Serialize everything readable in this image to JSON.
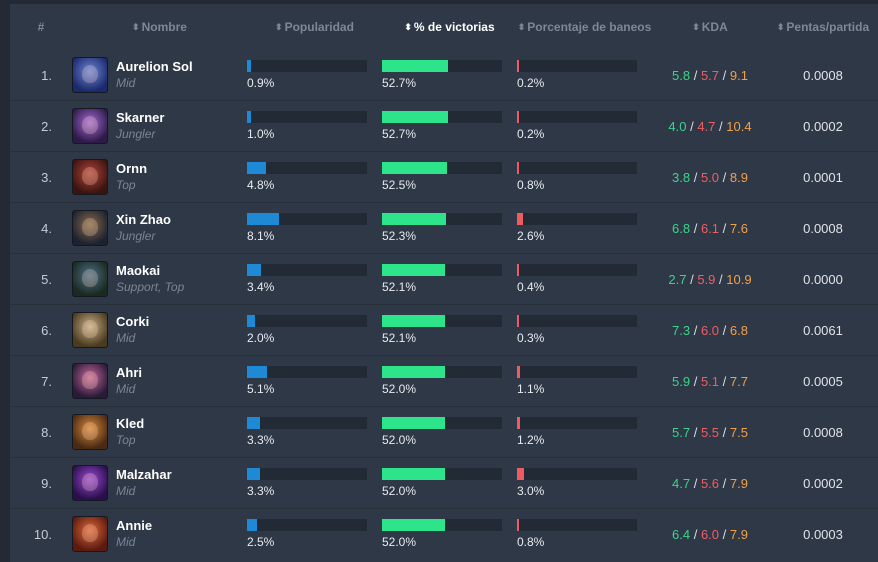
{
  "header": {
    "rank": "#",
    "name": "Nombre",
    "popularity": "Popularidad",
    "winrate": "% de victorias",
    "banrate": "Porcentaje de baneos",
    "kda": "KDA",
    "pentas": "Pentas/partida"
  },
  "colors": {
    "popularity_bar": "#1e8ad6",
    "winrate_bar": "#2de48b",
    "banrate_bar": "#ee5c61",
    "kda_kills": "#3ad58a",
    "kda_deaths": "#ef5e64",
    "kda_assists": "#f2a04a"
  },
  "rows": [
    {
      "rank": "1.",
      "name": "Aurelion Sol",
      "role": "Mid",
      "icon": "aurelion-sol-portrait",
      "popularity": "0.9%",
      "winrate": "52.7%",
      "banrate": "0.2%",
      "kda_k": "5.8",
      "kda_d": "5.7",
      "kda_a": "9.1",
      "pentas": "0.0008"
    },
    {
      "rank": "2.",
      "name": "Skarner",
      "role": "Jungler",
      "icon": "skarner-portrait",
      "popularity": "1.0%",
      "winrate": "52.7%",
      "banrate": "0.2%",
      "kda_k": "4.0",
      "kda_d": "4.7",
      "kda_a": "10.4",
      "pentas": "0.0002"
    },
    {
      "rank": "3.",
      "name": "Ornn",
      "role": "Top",
      "icon": "ornn-portrait",
      "popularity": "4.8%",
      "winrate": "52.5%",
      "banrate": "0.8%",
      "kda_k": "3.8",
      "kda_d": "5.0",
      "kda_a": "8.9",
      "pentas": "0.0001"
    },
    {
      "rank": "4.",
      "name": "Xin Zhao",
      "role": "Jungler",
      "icon": "xin-zhao-portrait",
      "popularity": "8.1%",
      "winrate": "52.3%",
      "banrate": "2.6%",
      "kda_k": "6.8",
      "kda_d": "6.1",
      "kda_a": "7.6",
      "pentas": "0.0008"
    },
    {
      "rank": "5.",
      "name": "Maokai",
      "role": "Support, Top",
      "icon": "maokai-portrait",
      "popularity": "3.4%",
      "winrate": "52.1%",
      "banrate": "0.4%",
      "kda_k": "2.7",
      "kda_d": "5.9",
      "kda_a": "10.9",
      "pentas": "0.0000"
    },
    {
      "rank": "6.",
      "name": "Corki",
      "role": "Mid",
      "icon": "corki-portrait",
      "popularity": "2.0%",
      "winrate": "52.1%",
      "banrate": "0.3%",
      "kda_k": "7.3",
      "kda_d": "6.0",
      "kda_a": "6.8",
      "pentas": "0.0061"
    },
    {
      "rank": "7.",
      "name": "Ahri",
      "role": "Mid",
      "icon": "ahri-portrait",
      "popularity": "5.1%",
      "winrate": "52.0%",
      "banrate": "1.1%",
      "kda_k": "5.9",
      "kda_d": "5.1",
      "kda_a": "7.7",
      "pentas": "0.0005"
    },
    {
      "rank": "8.",
      "name": "Kled",
      "role": "Top",
      "icon": "kled-portrait",
      "popularity": "3.3%",
      "winrate": "52.0%",
      "banrate": "1.2%",
      "kda_k": "5.7",
      "kda_d": "5.5",
      "kda_a": "7.5",
      "pentas": "0.0008"
    },
    {
      "rank": "9.",
      "name": "Malzahar",
      "role": "Mid",
      "icon": "malzahar-portrait",
      "popularity": "3.3%",
      "winrate": "52.0%",
      "banrate": "3.0%",
      "kda_k": "4.7",
      "kda_d": "5.6",
      "kda_a": "7.9",
      "pentas": "0.0002"
    },
    {
      "rank": "10.",
      "name": "Annie",
      "role": "Mid",
      "icon": "annie-portrait",
      "popularity": "2.5%",
      "winrate": "52.0%",
      "banrate": "0.8%",
      "kda_k": "6.4",
      "kda_d": "6.0",
      "kda_a": "7.9",
      "pentas": "0.0003"
    }
  ]
}
